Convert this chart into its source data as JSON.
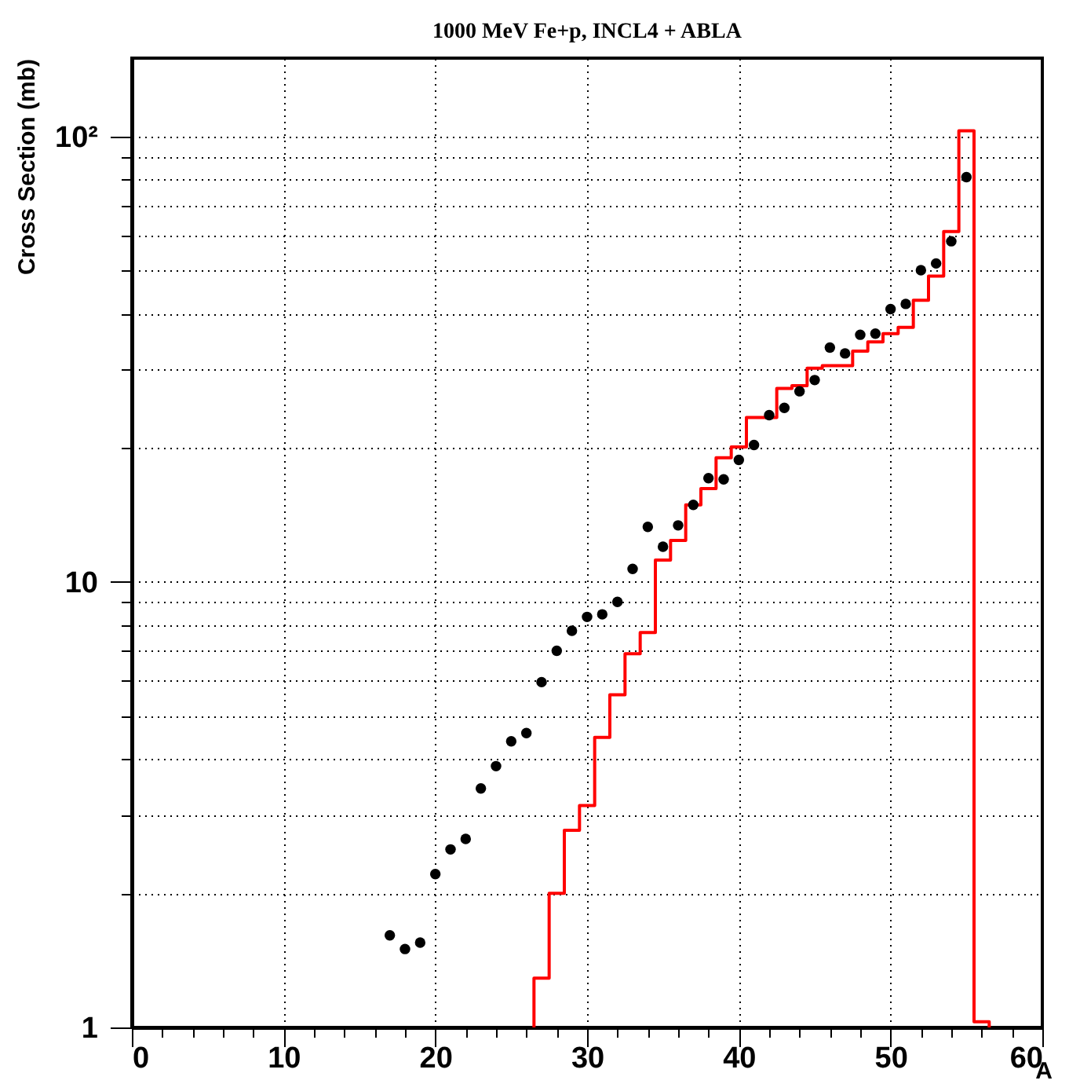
{
  "chart_data": {
    "type": "histogram",
    "title": "1000 MeV Fe+p, INCL4 + ABLA",
    "xlabel": "A",
    "ylabel": "Cross Section (mb)",
    "log": "y",
    "grid": true,
    "xlim": [
      0,
      60
    ],
    "xticks": [
      0,
      {
        "value": 2,
        "label": null
      },
      {
        "value": 4,
        "label": null
      },
      {
        "value": 6,
        "label": null
      },
      {
        "value": 8,
        "label": null
      },
      10,
      {
        "value": 12,
        "label": null
      },
      {
        "value": 14,
        "label": null
      },
      {
        "value": 16,
        "label": null
      },
      {
        "value": 18,
        "label": null
      },
      20,
      {
        "value": 22,
        "label": null
      },
      {
        "value": 24,
        "label": null
      },
      {
        "value": 26,
        "label": null
      },
      {
        "value": 28,
        "label": null
      },
      30,
      {
        "value": 32,
        "label": null
      },
      {
        "value": 34,
        "label": null
      },
      {
        "value": 36,
        "label": null
      },
      {
        "value": 38,
        "label": null
      },
      40,
      {
        "value": 42,
        "label": null
      },
      {
        "value": 44,
        "label": null
      },
      {
        "value": 46,
        "label": null
      },
      {
        "value": 48,
        "label": null
      },
      50,
      {
        "value": 52,
        "label": null
      },
      {
        "value": 54,
        "label": null
      },
      {
        "value": 56,
        "label": null
      },
      {
        "value": 58,
        "label": null
      },
      60
    ],
    "ylim": [
      1,
      150
    ],
    "yticks": [
      1,
      {
        "value": 2,
        "label": null
      },
      {
        "value": 3,
        "label": null
      },
      {
        "value": 4,
        "label": null
      },
      {
        "value": 5,
        "label": null
      },
      {
        "value": 6,
        "label": null
      },
      {
        "value": 7,
        "label": null
      },
      {
        "value": 8,
        "label": null
      },
      {
        "value": 9,
        "label": null
      },
      10,
      {
        "value": 20,
        "label": null
      },
      {
        "value": 30,
        "label": null
      },
      {
        "value": 40,
        "label": null
      },
      {
        "value": 50,
        "label": null
      },
      {
        "value": 60,
        "label": null
      },
      {
        "value": 70,
        "label": null
      },
      {
        "value": 80,
        "label": null
      },
      {
        "value": 90,
        "label": null
      },
      {
        "value": 100,
        "label": "10²"
      }
    ],
    "series": [
      {
        "color": "#ff0000",
        "bins": [
          26.5,
          27.5,
          28.5,
          29.5,
          30.5,
          31.5,
          32.5,
          33.5,
          34.5,
          35.5,
          36.5,
          37.5,
          38.5,
          39.5,
          40.5,
          41.5,
          42.5,
          43.5,
          44.5,
          45.5,
          46.5,
          47.5,
          48.5,
          49.5,
          50.5,
          51.5,
          52.5,
          53.5,
          54.5,
          55.5,
          56.5
        ],
        "values": [
          1.29,
          2.0,
          2.77,
          3.15,
          4.48,
          5.58,
          6.9,
          7.7,
          11.2,
          12.4,
          14.9,
          16.2,
          19.0,
          20.1,
          23.4,
          23.4,
          27.2,
          27.6,
          30.2,
          30.6,
          30.6,
          33.0,
          34.6,
          36.1,
          37.3,
          42.9,
          48.6,
          61.2,
          103,
          1.03
        ]
      },
      {
        "type": "scatter",
        "color": "#000000",
        "marker": "circle",
        "x": [
          17,
          18,
          19,
          20,
          21,
          22,
          23,
          24,
          25,
          26,
          27,
          28,
          29,
          30,
          31,
          32,
          33,
          34,
          35,
          36,
          37,
          38,
          39,
          40,
          41,
          42,
          43,
          44,
          45,
          46,
          47,
          48,
          49,
          50,
          51,
          52,
          53,
          54,
          55
        ],
        "values": [
          1.61,
          1.5,
          1.55,
          2.21,
          2.51,
          2.65,
          3.44,
          3.86,
          4.39,
          4.58,
          5.96,
          7.01,
          7.77,
          8.35,
          8.46,
          9.02,
          10.7,
          13.3,
          12.0,
          13.4,
          14.9,
          17.1,
          17.0,
          18.8,
          20.3,
          23.7,
          24.6,
          26.8,
          28.4,
          33.6,
          32.6,
          35.9,
          36.1,
          41.0,
          42.1,
          50.1,
          51.9,
          58.2,
          81.1
        ]
      }
    ]
  }
}
